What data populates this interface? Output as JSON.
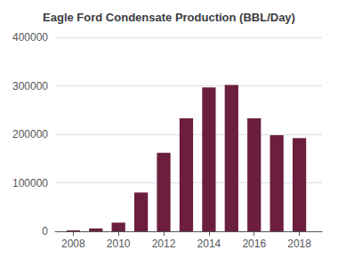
{
  "chart_data": {
    "type": "bar",
    "title": "Eagle Ford Condensate Production (BBL/Day)",
    "x": [
      2008,
      2009,
      2010,
      2011,
      2012,
      2013,
      2014,
      2015,
      2016,
      2017,
      2018
    ],
    "values": [
      2000,
      6000,
      18000,
      80000,
      162000,
      233000,
      297000,
      302000,
      233000,
      198000,
      192000
    ],
    "color": "#6b1e3e",
    "xlim": [
      2007.2,
      2019.0
    ],
    "xticks": [
      2008,
      2010,
      2012,
      2014,
      2016,
      2018
    ],
    "ylim": [
      0,
      400000
    ],
    "yticks": [
      0,
      100000,
      200000,
      300000,
      400000
    ],
    "grid": true
  }
}
